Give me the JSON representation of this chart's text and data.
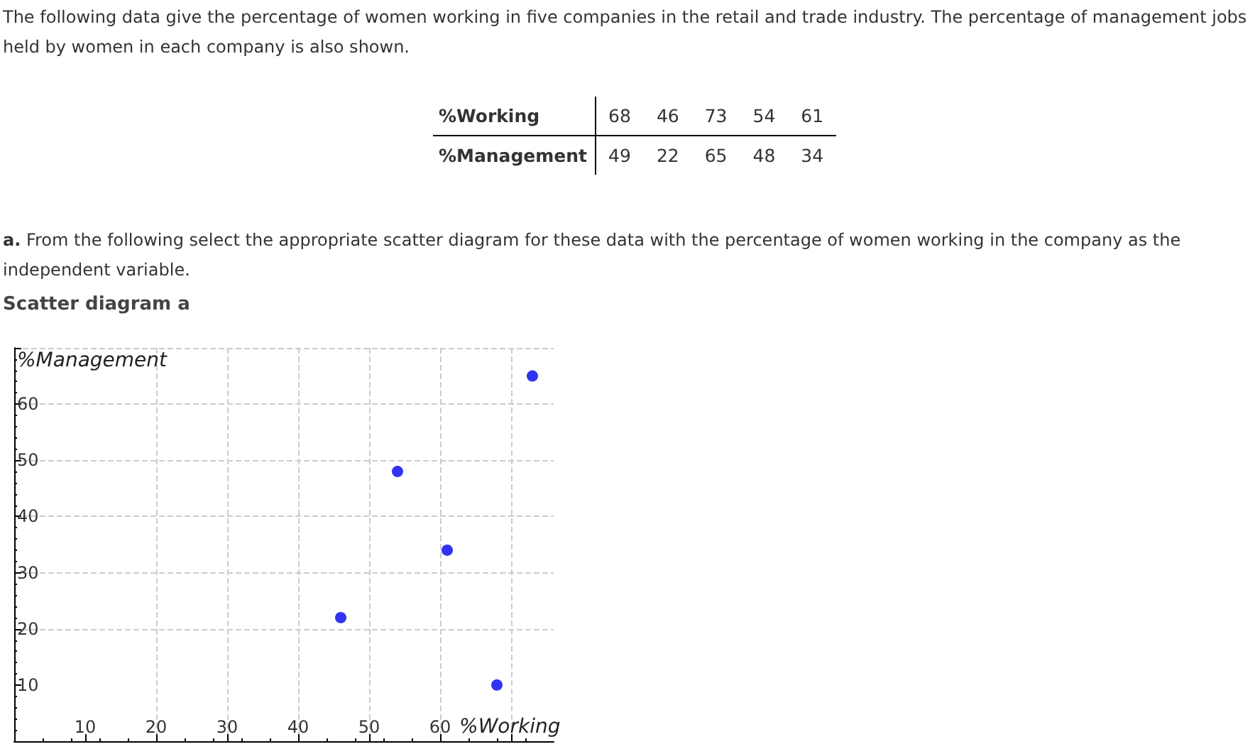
{
  "chart_data": [
    {
      "type": "other",
      "title": "The following data give the percentage of women working in five companies in the retail and trade industry. The percentage of management jobs held by women in each company is also shown.",
      "y_categories": [
        "%Working",
        "%Management"
      ],
      "cell_labels": [
        [
          "68",
          "46",
          "73",
          "54",
          "61"
        ],
        [
          "49",
          "22",
          "65",
          "48",
          "34"
        ]
      ],
      "annotations": [
        "a. From the following select the appropriate scatter diagram for these data with the percentage of women working in the company as the independent variable."
      ]
    },
    {
      "type": "scatter",
      "title": "Scatter diagram a",
      "xlabel": "%Working",
      "ylabel": "%Management",
      "x": [
        46,
        54,
        61,
        68,
        73
      ],
      "values": [
        22,
        48,
        34,
        10,
        65
      ],
      "color": "#0000ee",
      "xlim": [
        0,
        76
      ],
      "ylim": [
        0,
        70
      ],
      "xticks": [
        10,
        20,
        30,
        40,
        50,
        60,
        {
          "value": 70,
          "label": null
        }
      ],
      "yticks": [
        10,
        20,
        30,
        40,
        50,
        60,
        {
          "value": 70,
          "label": null
        }
      ],
      "grid": true,
      "marker": "circle"
    }
  ]
}
